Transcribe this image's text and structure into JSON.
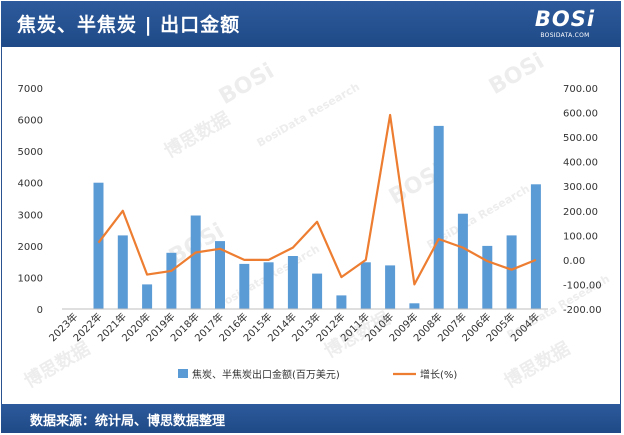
{
  "header": {
    "title": "焦炭、半焦炭 | 出口金额",
    "logo_word": "BOSi",
    "logo_domain": "BOSIDATA.COM"
  },
  "footer": {
    "source": "数据来源：统计局、博思数据整理"
  },
  "watermark": {
    "logo": "BOSi",
    "brand_cn": "博思数据",
    "brand_en": "BosiData Research"
  },
  "colors": {
    "header_bg": "#1f4a87",
    "bar": "#5b9bd5",
    "line": "#ed7d31"
  },
  "chart_data": {
    "type": "bar",
    "categories": [
      "2023年",
      "2022年",
      "2021年",
      "2020年",
      "2019年",
      "2018年",
      "2017年",
      "2016年",
      "2015年",
      "2014年",
      "2013年",
      "2012年",
      "2011年",
      "2010年",
      "2009年",
      "2008年",
      "2007年",
      "2006年",
      "2005年",
      "2004年"
    ],
    "series": [
      {
        "name": "焦炭、半焦炭出口金额(百万美元)",
        "type": "bar",
        "axis": "left",
        "values": [
          0,
          4000,
          2330,
          780,
          1780,
          2960,
          2150,
          1430,
          1480,
          1680,
          1120,
          430,
          1480,
          1380,
          180,
          5800,
          3020,
          2000,
          2330,
          3950
        ]
      },
      {
        "name": "增长(%)",
        "type": "line",
        "axis": "right",
        "values": [
          null,
          70,
          200,
          -60,
          -45,
          30,
          45,
          0,
          0,
          50,
          155,
          -70,
          0,
          590,
          -100,
          85,
          50,
          -5,
          -40,
          0
        ]
      }
    ],
    "y_left": {
      "min": 0,
      "max": 7000,
      "step": 1000,
      "ticks": [
        "0",
        "1000",
        "2000",
        "3000",
        "4000",
        "5000",
        "6000",
        "7000"
      ]
    },
    "y_right": {
      "min": -200,
      "max": 700,
      "step": 100,
      "ticks": [
        "-200.00",
        "-100.00",
        "0.00",
        "100.00",
        "200.00",
        "300.00",
        "400.00",
        "500.00",
        "600.00",
        "700.00"
      ]
    },
    "grid": false,
    "legend_position": "bottom"
  }
}
